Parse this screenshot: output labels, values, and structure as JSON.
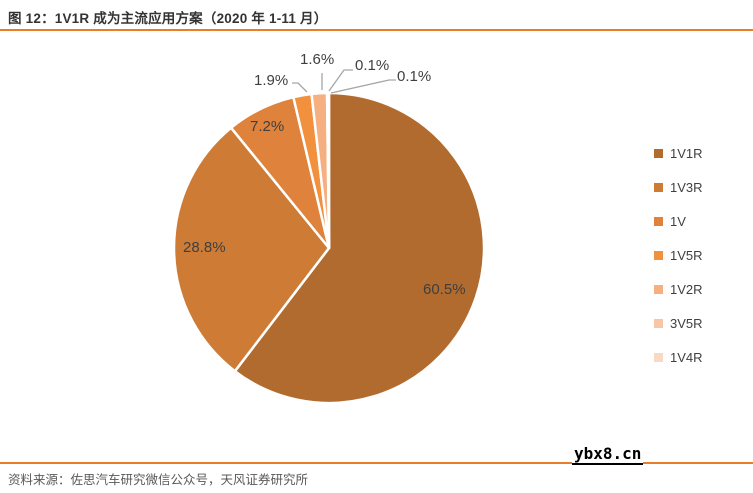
{
  "header": {
    "title": "图 12：1V1R 成为主流应用方案（2020 年 1-11 月）"
  },
  "chart_data": {
    "type": "pie",
    "title": "1V1R 成为主流应用方案（2020 年 1-11 月）",
    "categories": [
      "1V1R",
      "1V3R",
      "1V",
      "1V5R",
      "1V2R",
      "3V5R",
      "1V4R"
    ],
    "values": [
      60.5,
      28.8,
      7.2,
      1.9,
      1.6,
      0.1,
      0.1
    ],
    "unit": "%",
    "percent_labels": [
      "60.5%",
      "28.8%",
      "7.2%",
      "1.9%",
      "1.6%",
      "0.1%",
      "0.1%"
    ],
    "colors": [
      "#B26B2E",
      "#CD7B35",
      "#DE823C",
      "#F2913D",
      "#F6AF80",
      "#F8C6A6",
      "#FAD9C4"
    ],
    "start_angle_deg": 0,
    "direction": "clockwise",
    "legend_position": "right",
    "slice_border_color": "#FFFFFF",
    "leader_line_color": "#A6A6A6"
  },
  "footer": {
    "source": "资料来源：佐思汽车研究微信公众号，天风证券研究所"
  },
  "watermark": {
    "text": "ybx8.cn"
  },
  "colors": {
    "accent_line": "#E87E2B",
    "title_text": "#333333",
    "label_text": "#3F3F3F",
    "source_text": "#595959"
  }
}
